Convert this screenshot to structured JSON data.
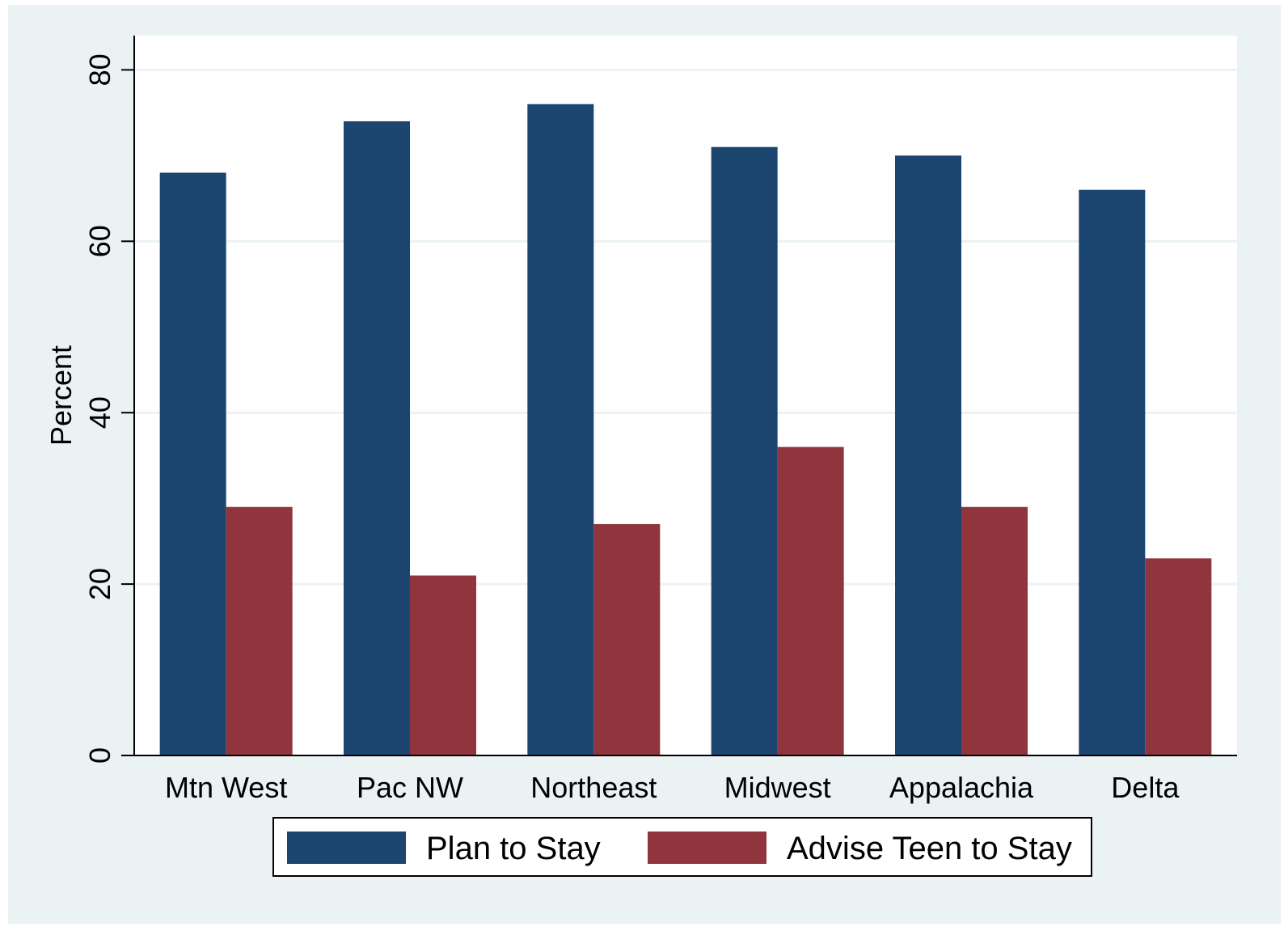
{
  "chart_data": {
    "type": "bar",
    "title": "",
    "xlabel": "",
    "ylabel": "Percent",
    "categories": [
      "Mtn West",
      "Pac NW",
      "Northeast",
      "Midwest",
      "Appalachia",
      "Delta"
    ],
    "series": [
      {
        "name": "Plan to Stay",
        "values": [
          68,
          74,
          76,
          71,
          70,
          66
        ],
        "color": "#1c4670"
      },
      {
        "name": "Advise Teen to Stay",
        "values": [
          29,
          21,
          27,
          36,
          29,
          23
        ],
        "color": "#90353d"
      }
    ],
    "ylim": [
      0,
      84
    ],
    "yticks": [
      0,
      20,
      40,
      60,
      80
    ],
    "grid": true,
    "legend_position": "bottom"
  },
  "colors": {
    "background": "#eaf2f3",
    "plot_area": "#ffffff",
    "gridline": "#eaf2f3"
  }
}
